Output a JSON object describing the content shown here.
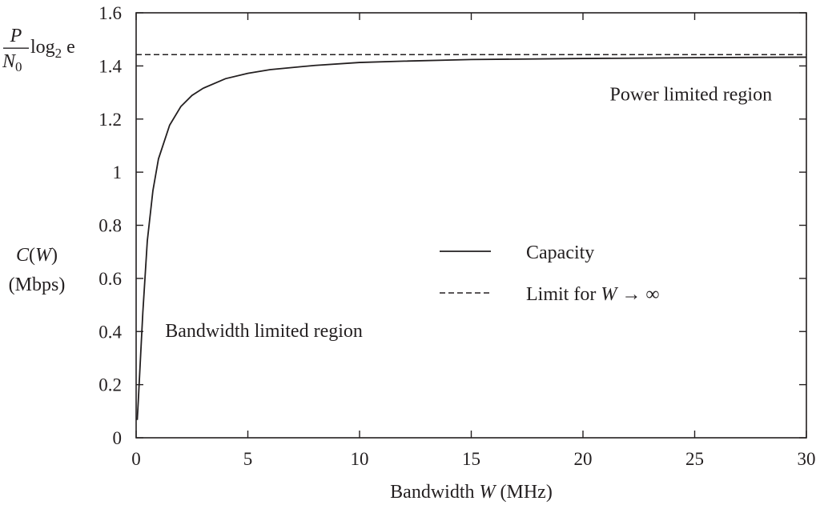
{
  "chart_data": {
    "type": "line",
    "xlabel": "Bandwidth W (MHz)",
    "xlabel_parts": [
      "Bandwidth ",
      "W",
      " (MHz)"
    ],
    "ylabel_lines": [
      "C(W)",
      "(Mbps)"
    ],
    "xlim": [
      0,
      30
    ],
    "ylim": [
      0,
      1.6
    ],
    "xticks": [
      0,
      5,
      10,
      15,
      20,
      25,
      30
    ],
    "xtick_labels": [
      "0",
      "5",
      "10",
      "15",
      "20",
      "25",
      "30"
    ],
    "yticks": [
      0,
      0.2,
      0.4,
      0.6,
      0.8,
      1.0,
      1.2,
      1.4,
      1.6
    ],
    "ytick_labels": [
      "0",
      "0.2",
      "0.4",
      "0.6",
      "0.8",
      "1",
      "1.2",
      "1.4",
      "1.6"
    ],
    "grid": false,
    "legend_position": "center-right",
    "limit_value": 1.4427,
    "limit_label": {
      "numerator": "P",
      "denominator": "N",
      "denominator_sub": "0",
      "log": "log",
      "log_sub": "2",
      "base": "e"
    },
    "series": [
      {
        "name": "Capacity",
        "style": "solid",
        "x": [
          0.05,
          0.1,
          0.2,
          0.3,
          0.5,
          0.75,
          1,
          1.5,
          2,
          2.5,
          3,
          4,
          5,
          6,
          8,
          10,
          12,
          15,
          20,
          25,
          30
        ],
        "y": [
          0.067,
          0.144,
          0.309,
          0.472,
          0.741,
          0.93,
          1.05,
          1.177,
          1.247,
          1.289,
          1.316,
          1.352,
          1.372,
          1.386,
          1.402,
          1.413,
          1.418,
          1.424,
          1.428,
          1.431,
          1.433
        ]
      },
      {
        "name": "Limit for W → ∞",
        "name_parts": [
          "Limit for ",
          "W",
          " → ∞"
        ],
        "style": "dashed",
        "x": [
          0,
          30
        ],
        "y": [
          1.4427,
          1.4427
        ]
      }
    ],
    "annotations": [
      {
        "text": "Power limited region",
        "x": 21.2,
        "y": 1.27
      },
      {
        "text": "Bandwidth limited region",
        "x": 1.3,
        "y": 0.38
      }
    ]
  }
}
